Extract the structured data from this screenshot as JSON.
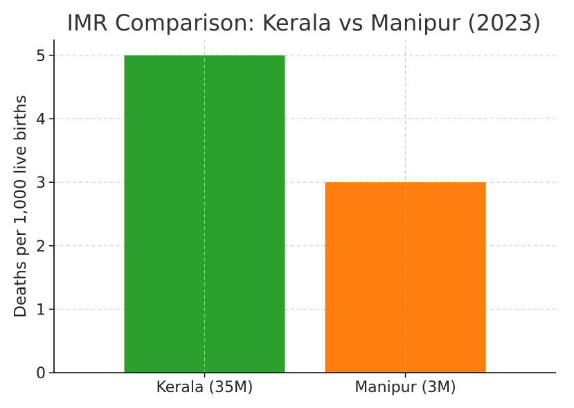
{
  "chart_data": {
    "type": "bar",
    "title": "IMR Comparison: Kerala vs Manipur (2023)",
    "xlabel": "",
    "ylabel": "Deaths per 1,000 live births",
    "categories": [
      "Kerala (35M)",
      "Manipur (3M)"
    ],
    "values": [
      5,
      3
    ],
    "colors": [
      "#2ca02c",
      "#ff7f0e"
    ],
    "ylim": [
      0,
      5.25
    ],
    "yticks": [
      0,
      1,
      2,
      3,
      4,
      5
    ],
    "grid": true
  }
}
